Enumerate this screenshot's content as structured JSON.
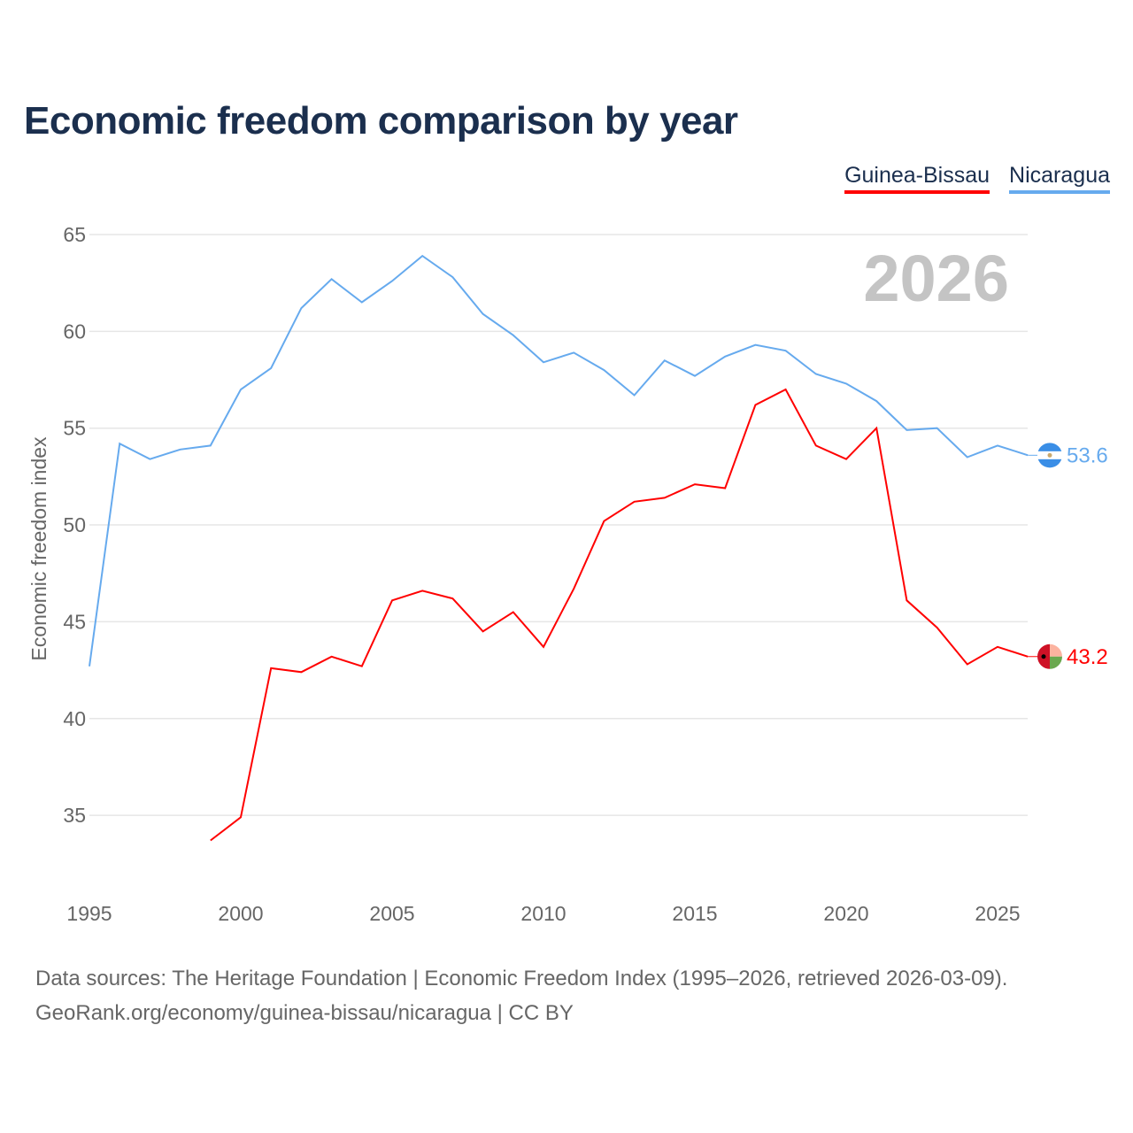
{
  "chart_data": {
    "type": "line",
    "title": "Economic freedom comparison by year",
    "xlabel": "",
    "ylabel": "Economic freedom index",
    "xlim": [
      1995,
      2026
    ],
    "ylim": [
      31,
      66
    ],
    "x_ticks": [
      1995,
      2000,
      2005,
      2010,
      2015,
      2020,
      2025
    ],
    "y_ticks": [
      35,
      40,
      45,
      50,
      55,
      60,
      65
    ],
    "grid": true,
    "legend_position": "top-right",
    "watermark_year": "2026",
    "series": [
      {
        "name": "Guinea-Bissau",
        "color": "#ff0000",
        "end_label": "43.2",
        "x": [
          1999,
          2000,
          2001,
          2002,
          2003,
          2004,
          2005,
          2006,
          2007,
          2008,
          2009,
          2010,
          2011,
          2012,
          2013,
          2014,
          2015,
          2016,
          2017,
          2018,
          2019,
          2020,
          2021,
          2022,
          2023,
          2024,
          2025,
          2026
        ],
        "values": [
          33.7,
          34.9,
          42.6,
          42.4,
          43.2,
          42.7,
          46.1,
          46.6,
          46.2,
          44.5,
          45.5,
          43.7,
          46.7,
          50.2,
          51.2,
          51.4,
          52.1,
          51.9,
          56.2,
          57.0,
          54.1,
          53.4,
          55.0,
          46.1,
          44.7,
          42.8,
          43.7,
          43.2
        ]
      },
      {
        "name": "Nicaragua",
        "color": "#66aaee",
        "end_label": "53.6",
        "x": [
          1995,
          1996,
          1997,
          1998,
          1999,
          2000,
          2001,
          2002,
          2003,
          2004,
          2005,
          2006,
          2007,
          2008,
          2009,
          2010,
          2011,
          2012,
          2013,
          2014,
          2015,
          2016,
          2017,
          2018,
          2019,
          2020,
          2021,
          2022,
          2023,
          2024,
          2025,
          2026
        ],
        "values": [
          42.7,
          54.2,
          53.4,
          53.9,
          54.1,
          57.0,
          58.1,
          61.2,
          62.7,
          61.5,
          62.6,
          63.9,
          62.8,
          60.9,
          59.8,
          58.4,
          58.9,
          58.0,
          56.7,
          58.5,
          57.7,
          58.7,
          59.3,
          59.0,
          57.8,
          57.3,
          56.4,
          54.9,
          55.0,
          53.5,
          54.1,
          53.6
        ]
      }
    ]
  },
  "footer": {
    "line1": "Data sources: The Heritage Foundation | Economic Freedom Index (1995–2026, retrieved 2026-03-09).",
    "line2": "GeoRank.org/economy/guinea-bissau/nicaragua | CC BY"
  }
}
